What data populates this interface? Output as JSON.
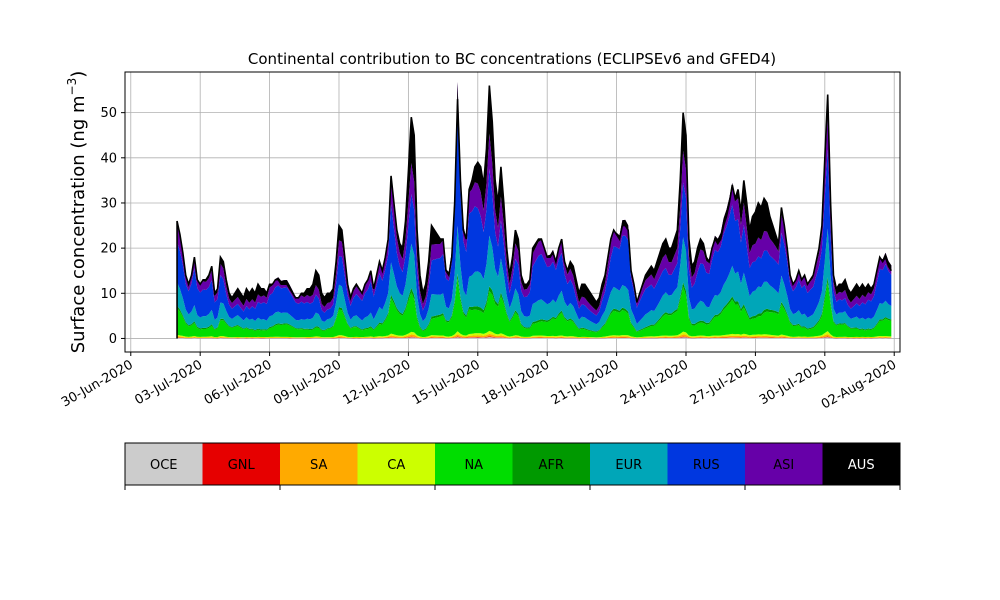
{
  "chart_data": {
    "type": "area",
    "title": "Continental contribution to BC concentrations (ECLIPSEv6 and GFED4)",
    "ylabel_main": "Surface concentration (ng m",
    "ylabel_exp": "−3",
    "ylabel_close": ")",
    "xlabel": "",
    "x_start": "2020-07-02T00:00",
    "x_step_hours": 3,
    "xlim": [
      "2020-06-29T18:00",
      "2020-08-02T06:00"
    ],
    "ylim": [
      -3,
      59
    ],
    "grid": true,
    "x_ticks": [
      {
        "label": "30-Jun-2020",
        "day": 0
      },
      {
        "label": "03-Jul-2020",
        "day": 3
      },
      {
        "label": "06-Jul-2020",
        "day": 6
      },
      {
        "label": "09-Jul-2020",
        "day": 9
      },
      {
        "label": "12-Jul-2020",
        "day": 12
      },
      {
        "label": "15-Jul-2020",
        "day": 15
      },
      {
        "label": "18-Jul-2020",
        "day": 18
      },
      {
        "label": "21-Jul-2020",
        "day": 21
      },
      {
        "label": "24-Jul-2020",
        "day": 24
      },
      {
        "label": "27-Jul-2020",
        "day": 27
      },
      {
        "label": "30-Jul-2020",
        "day": 30
      },
      {
        "label": "02-Aug-2020",
        "day": 33
      }
    ],
    "y_ticks": [
      0,
      10,
      20,
      30,
      40,
      50
    ],
    "total_values": [
      26,
      23,
      19,
      14,
      12,
      14,
      18,
      13,
      12,
      13,
      13,
      14,
      16,
      10,
      11,
      18,
      17,
      13,
      10,
      9,
      10,
      11,
      10,
      9,
      11,
      10,
      11,
      10,
      12,
      11,
      11,
      10,
      12,
      12,
      13,
      13,
      12,
      12,
      12,
      11,
      10,
      9,
      9,
      10,
      10,
      11,
      11,
      12,
      15,
      14,
      10,
      9,
      10,
      10,
      11,
      17,
      25,
      24,
      18,
      12,
      9,
      11,
      12,
      11,
      10,
      12,
      13,
      15,
      11,
      14,
      17,
      15,
      18,
      22,
      36,
      30,
      24,
      21,
      20,
      26,
      37,
      49,
      45,
      24,
      14,
      10,
      12,
      17,
      25,
      24,
      23,
      22,
      22,
      15,
      14,
      18,
      30,
      53,
      35,
      24,
      22,
      33,
      35,
      38,
      39,
      38,
      34,
      42,
      56,
      48,
      35,
      30,
      38,
      30,
      20,
      14,
      18,
      24,
      22,
      14,
      12,
      12,
      13,
      20,
      21,
      22,
      22,
      20,
      18,
      18,
      19,
      17,
      20,
      22,
      17,
      15,
      17,
      16,
      13,
      10,
      12,
      12,
      11,
      10,
      9,
      8,
      9,
      12,
      14,
      18,
      22,
      24,
      23,
      22,
      25,
      25,
      24,
      15,
      12,
      8,
      10,
      12,
      14,
      15,
      16,
      15,
      17,
      19,
      21,
      22,
      20,
      20,
      22,
      24,
      35,
      50,
      45,
      22,
      16,
      17,
      20,
      22,
      21,
      18,
      17,
      20,
      22,
      21,
      22,
      25,
      27,
      30,
      34,
      31,
      33,
      28,
      35,
      30,
      24,
      27,
      28,
      30,
      29,
      31,
      30,
      27,
      25,
      23,
      21,
      29,
      25,
      20,
      14,
      12,
      13,
      15,
      13,
      14,
      12,
      13,
      14,
      17,
      20,
      25,
      40,
      54,
      30,
      14,
      11,
      12,
      12,
      13,
      11,
      10,
      11,
      12,
      11,
      12,
      11,
      12,
      11,
      12,
      15,
      18,
      17,
      18,
      16,
      15
    ],
    "series": [
      {
        "name": "OCE",
        "color": "#cccccc",
        "share": 0.005
      },
      {
        "name": "GNL",
        "color": "#e60000",
        "share": 0.003
      },
      {
        "name": "SA",
        "color": "#ffaa00",
        "share": 0.01
      },
      {
        "name": "CA",
        "color": "#ccff00",
        "share": 0.012
      },
      {
        "name": "NA",
        "color": "#00dd00",
        "share": 0.2
      },
      {
        "name": "AFR",
        "color": "#009900",
        "share": 0.02
      },
      {
        "name": "EUR",
        "color": "#00a6b8",
        "share": 0.2
      },
      {
        "name": "RUS",
        "color": "#0037e0",
        "share": 0.4
      },
      {
        "name": "ASI",
        "color": "#6600a8",
        "share": 0.14
      },
      {
        "name": "AUS",
        "color": "#000000",
        "share": 0.01
      }
    ]
  },
  "legend": {
    "items": [
      {
        "label": "OCE",
        "color": "#cccccc"
      },
      {
        "label": "GNL",
        "color": "#e60000"
      },
      {
        "label": "SA",
        "color": "#ffaa00"
      },
      {
        "label": "CA",
        "color": "#ccff00"
      },
      {
        "label": "NA",
        "color": "#00dd00"
      },
      {
        "label": "AFR",
        "color": "#009900"
      },
      {
        "label": "EUR",
        "color": "#00a6b8"
      },
      {
        "label": "RUS",
        "color": "#0037e0"
      },
      {
        "label": "ASI",
        "color": "#6600a8"
      },
      {
        "label": "AUS",
        "color": "#000000"
      }
    ]
  }
}
